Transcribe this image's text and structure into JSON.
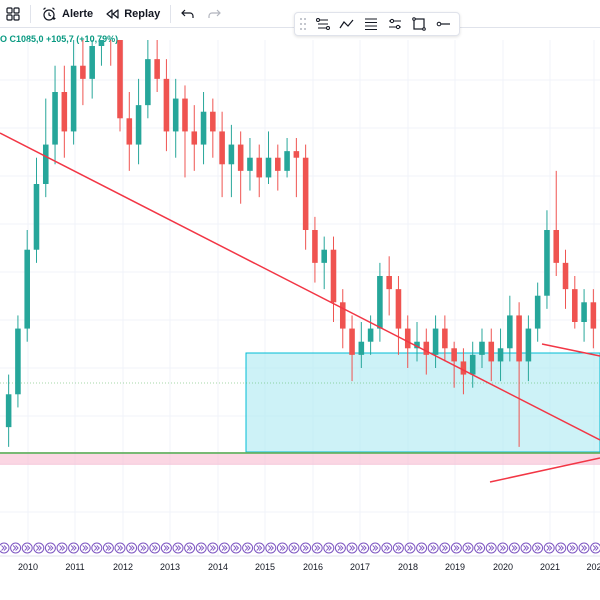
{
  "toolbar": {
    "alert_label": "Alerte",
    "replay_label": "Replay"
  },
  "quote": {
    "text": "O  C1085,0  +105,7 (+10,79%)",
    "color": "#089981"
  },
  "drawing_toolbar": {
    "tools": [
      "multipoint-line-icon",
      "trend-path-icon",
      "text-lines-icon",
      "range-icon",
      "rectangle-icon",
      "horizontal-ray-icon"
    ]
  },
  "chart_data": {
    "type": "candlestick",
    "x_axis_labels": [
      "2010",
      "2011",
      "2012",
      "2013",
      "2014",
      "2015",
      "2016",
      "2017",
      "2018",
      "2019",
      "2020",
      "2021",
      "202"
    ],
    "colors": {
      "up": "#26a69a",
      "down": "#ef5350",
      "trendline": "#f23645",
      "range_box_fill": "#b2ebf2",
      "range_box_border": "#00bcd4",
      "support_zone": "#f8bbd0",
      "support_line": "#4caf50",
      "event_markers": "#7e57c2"
    },
    "candles": [
      [
        0.45,
        0.5,
        0.53,
        0.42
      ],
      [
        0.5,
        0.6,
        0.62,
        0.48
      ],
      [
        0.6,
        0.72,
        0.75,
        0.58
      ],
      [
        0.72,
        0.82,
        0.86,
        0.7
      ],
      [
        0.82,
        0.88,
        0.95,
        0.8
      ],
      [
        0.88,
        0.96,
        1.0,
        0.85
      ],
      [
        0.96,
        0.9,
        1.0,
        0.86
      ],
      [
        0.9,
        1.0,
        1.05,
        0.88
      ],
      [
        1.0,
        0.98,
        1.06,
        0.94
      ],
      [
        0.98,
        1.03,
        1.08,
        0.95
      ],
      [
        1.03,
        1.08,
        1.12,
        1.0
      ],
      [
        1.08,
        1.05,
        1.1,
        1.0
      ],
      [
        1.05,
        0.92,
        1.08,
        0.9
      ],
      [
        0.92,
        0.88,
        0.96,
        0.84
      ],
      [
        0.88,
        0.94,
        0.98,
        0.85
      ],
      [
        0.94,
        1.01,
        1.04,
        0.92
      ],
      [
        1.01,
        0.98,
        1.06,
        0.96
      ],
      [
        0.98,
        0.9,
        1.01,
        0.87
      ],
      [
        0.9,
        0.95,
        0.98,
        0.86
      ],
      [
        0.95,
        0.9,
        0.97,
        0.83
      ],
      [
        0.9,
        0.88,
        0.94,
        0.84
      ],
      [
        0.88,
        0.93,
        0.96,
        0.85
      ],
      [
        0.93,
        0.9,
        0.95,
        0.86
      ],
      [
        0.9,
        0.85,
        0.93,
        0.8
      ],
      [
        0.85,
        0.88,
        0.91,
        0.8
      ],
      [
        0.88,
        0.84,
        0.9,
        0.79
      ],
      [
        0.84,
        0.86,
        0.89,
        0.81
      ],
      [
        0.86,
        0.83,
        0.88,
        0.8
      ],
      [
        0.83,
        0.86,
        0.9,
        0.82
      ],
      [
        0.86,
        0.84,
        0.88,
        0.81
      ],
      [
        0.84,
        0.87,
        0.89,
        0.83
      ],
      [
        0.87,
        0.86,
        0.89,
        0.8
      ],
      [
        0.86,
        0.75,
        0.88,
        0.72
      ],
      [
        0.75,
        0.7,
        0.77,
        0.67
      ],
      [
        0.7,
        0.72,
        0.74,
        0.66
      ],
      [
        0.72,
        0.64,
        0.74,
        0.61
      ],
      [
        0.64,
        0.6,
        0.66,
        0.57
      ],
      [
        0.6,
        0.56,
        0.62,
        0.52
      ],
      [
        0.56,
        0.58,
        0.61,
        0.54
      ],
      [
        0.58,
        0.6,
        0.62,
        0.56
      ],
      [
        0.6,
        0.68,
        0.7,
        0.58
      ],
      [
        0.68,
        0.66,
        0.71,
        0.62
      ],
      [
        0.66,
        0.6,
        0.68,
        0.56
      ],
      [
        0.6,
        0.57,
        0.62,
        0.54
      ],
      [
        0.57,
        0.58,
        0.61,
        0.55
      ],
      [
        0.58,
        0.56,
        0.6,
        0.53
      ],
      [
        0.56,
        0.6,
        0.62,
        0.54
      ],
      [
        0.6,
        0.57,
        0.62,
        0.55
      ],
      [
        0.57,
        0.55,
        0.58,
        0.51
      ],
      [
        0.55,
        0.53,
        0.57,
        0.5
      ],
      [
        0.53,
        0.56,
        0.58,
        0.51
      ],
      [
        0.56,
        0.58,
        0.6,
        0.54
      ],
      [
        0.58,
        0.55,
        0.6,
        0.52
      ],
      [
        0.55,
        0.57,
        0.6,
        0.52
      ],
      [
        0.57,
        0.62,
        0.65,
        0.55
      ],
      [
        0.62,
        0.55,
        0.64,
        0.42
      ],
      [
        0.55,
        0.6,
        0.62,
        0.52
      ],
      [
        0.6,
        0.65,
        0.67,
        0.58
      ],
      [
        0.65,
        0.75,
        0.78,
        0.63
      ],
      [
        0.75,
        0.7,
        0.84,
        0.68
      ],
      [
        0.7,
        0.66,
        0.72,
        0.63
      ],
      [
        0.66,
        0.61,
        0.68,
        0.6
      ],
      [
        0.61,
        0.64,
        0.66,
        0.58
      ],
      [
        0.64,
        0.6,
        0.66,
        0.57
      ]
    ],
    "price_min": 0.4,
    "price_max": 1.1
  }
}
